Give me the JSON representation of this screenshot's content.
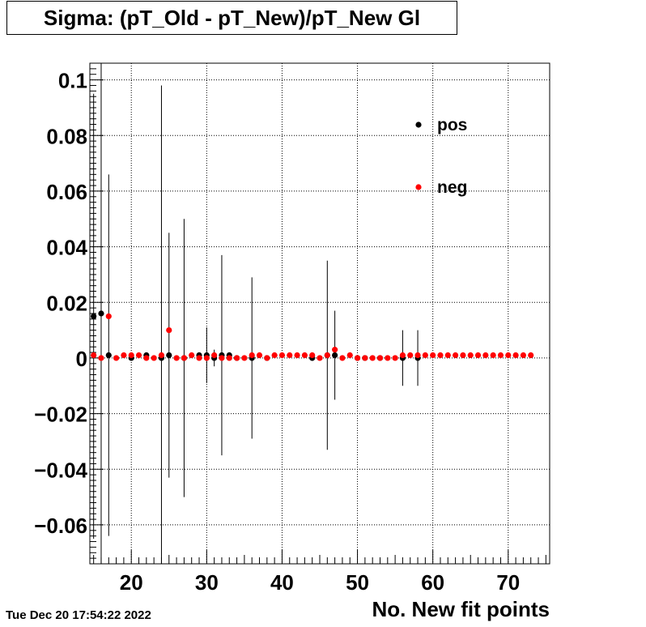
{
  "title": "Sigma: (pT_Old - pT_New)/pT_New Gl",
  "footer_date": "Tue Dec 20 17:54:22 2022",
  "chart_data": {
    "type": "scatter",
    "title": "Sigma: (pT_Old - pT_New)/pT_New Gl",
    "xlabel": "No. New fit points",
    "ylabel": "",
    "xlim": [
      14.5,
      75.5
    ],
    "ylim": [
      -0.074,
      0.106
    ],
    "grid": true,
    "legend_position": "top-right",
    "x_ticks": [
      20,
      30,
      40,
      50,
      60,
      70
    ],
    "y_ticks": [
      -0.06,
      -0.04,
      -0.02,
      0,
      0.02,
      0.04,
      0.06,
      0.08,
      0.1
    ],
    "x_tick_labels": [
      "20",
      "30",
      "40",
      "50",
      "60",
      "70"
    ],
    "y_tick_labels": [
      "−0.06",
      "−0.04",
      "−0.02",
      "0",
      "0.02",
      "0.04",
      "0.06",
      "0.08",
      "0.1"
    ],
    "series": [
      {
        "name": "pos",
        "color": "#000000",
        "points": [
          {
            "x": 15,
            "y": 0.015,
            "err": 0.08
          },
          {
            "x": 16,
            "y": 0.016,
            "err": 0.15
          },
          {
            "x": 17,
            "y": 0.001,
            "err": 0.065
          },
          {
            "x": 20,
            "y": 0.0,
            "err": 0.0
          },
          {
            "x": 22,
            "y": 0.001,
            "err": 0.0
          },
          {
            "x": 24,
            "y": 0.0,
            "err": 0.098
          },
          {
            "x": 25,
            "y": 0.001,
            "err": 0.044
          },
          {
            "x": 27,
            "y": 0.0,
            "err": 0.05
          },
          {
            "x": 29,
            "y": 0.001,
            "err": 0.0
          },
          {
            "x": 30,
            "y": 0.001,
            "err": 0.01
          },
          {
            "x": 31,
            "y": 0.0,
            "err": 0.003
          },
          {
            "x": 32,
            "y": 0.001,
            "err": 0.036
          },
          {
            "x": 33,
            "y": 0.001,
            "err": 0.0
          },
          {
            "x": 34,
            "y": 0.0,
            "err": 0.001
          },
          {
            "x": 36,
            "y": 0.0,
            "err": 0.029
          },
          {
            "x": 38,
            "y": 0.0,
            "err": 0.0
          },
          {
            "x": 44,
            "y": 0.0,
            "err": 0.001
          },
          {
            "x": 46,
            "y": 0.001,
            "err": 0.034
          },
          {
            "x": 47,
            "y": 0.001,
            "err": 0.016
          },
          {
            "x": 50,
            "y": 0.0,
            "err": 0.0
          },
          {
            "x": 51,
            "y": 0.0,
            "err": 0.0
          },
          {
            "x": 53,
            "y": 0.0,
            "err": 0.0
          },
          {
            "x": 56,
            "y": 0.0,
            "err": 0.01
          },
          {
            "x": 58,
            "y": 0.0,
            "err": 0.01
          }
        ]
      },
      {
        "name": "neg",
        "color": "#ff0000",
        "points": [
          {
            "x": 15,
            "y": 0.001
          },
          {
            "x": 16,
            "y": 0.0
          },
          {
            "x": 17,
            "y": 0.015
          },
          {
            "x": 18,
            "y": 0.0
          },
          {
            "x": 19,
            "y": 0.001
          },
          {
            "x": 20,
            "y": 0.001
          },
          {
            "x": 21,
            "y": 0.001
          },
          {
            "x": 22,
            "y": 0.0
          },
          {
            "x": 23,
            "y": 0.0
          },
          {
            "x": 24,
            "y": 0.001
          },
          {
            "x": 25,
            "y": 0.01
          },
          {
            "x": 26,
            "y": 0.0
          },
          {
            "x": 27,
            "y": 0.0
          },
          {
            "x": 28,
            "y": 0.001
          },
          {
            "x": 29,
            "y": 0.0
          },
          {
            "x": 30,
            "y": 0.0
          },
          {
            "x": 31,
            "y": 0.001
          },
          {
            "x": 32,
            "y": 0.0
          },
          {
            "x": 33,
            "y": 0.0
          },
          {
            "x": 34,
            "y": 0.0
          },
          {
            "x": 35,
            "y": 0.0
          },
          {
            "x": 36,
            "y": 0.001
          },
          {
            "x": 37,
            "y": 0.001
          },
          {
            "x": 38,
            "y": 0.0
          },
          {
            "x": 39,
            "y": 0.001
          },
          {
            "x": 40,
            "y": 0.001
          },
          {
            "x": 41,
            "y": 0.001
          },
          {
            "x": 42,
            "y": 0.001
          },
          {
            "x": 43,
            "y": 0.001
          },
          {
            "x": 44,
            "y": 0.001
          },
          {
            "x": 45,
            "y": 0.0
          },
          {
            "x": 46,
            "y": 0.001
          },
          {
            "x": 47,
            "y": 0.003
          },
          {
            "x": 48,
            "y": 0.0
          },
          {
            "x": 49,
            "y": 0.001
          },
          {
            "x": 50,
            "y": 0.0
          },
          {
            "x": 51,
            "y": 0.0
          },
          {
            "x": 52,
            "y": 0.0
          },
          {
            "x": 53,
            "y": 0.0
          },
          {
            "x": 54,
            "y": 0.0
          },
          {
            "x": 55,
            "y": 0.0
          },
          {
            "x": 56,
            "y": 0.001
          },
          {
            "x": 57,
            "y": 0.001
          },
          {
            "x": 58,
            "y": 0.001
          },
          {
            "x": 59,
            "y": 0.001
          },
          {
            "x": 60,
            "y": 0.001
          },
          {
            "x": 61,
            "y": 0.001
          },
          {
            "x": 62,
            "y": 0.001
          },
          {
            "x": 63,
            "y": 0.001
          },
          {
            "x": 64,
            "y": 0.001
          },
          {
            "x": 65,
            "y": 0.001
          },
          {
            "x": 66,
            "y": 0.001
          },
          {
            "x": 67,
            "y": 0.001
          },
          {
            "x": 68,
            "y": 0.001
          },
          {
            "x": 69,
            "y": 0.001
          },
          {
            "x": 70,
            "y": 0.001
          },
          {
            "x": 71,
            "y": 0.001
          },
          {
            "x": 72,
            "y": 0.001
          },
          {
            "x": 73,
            "y": 0.001
          }
        ]
      }
    ]
  }
}
